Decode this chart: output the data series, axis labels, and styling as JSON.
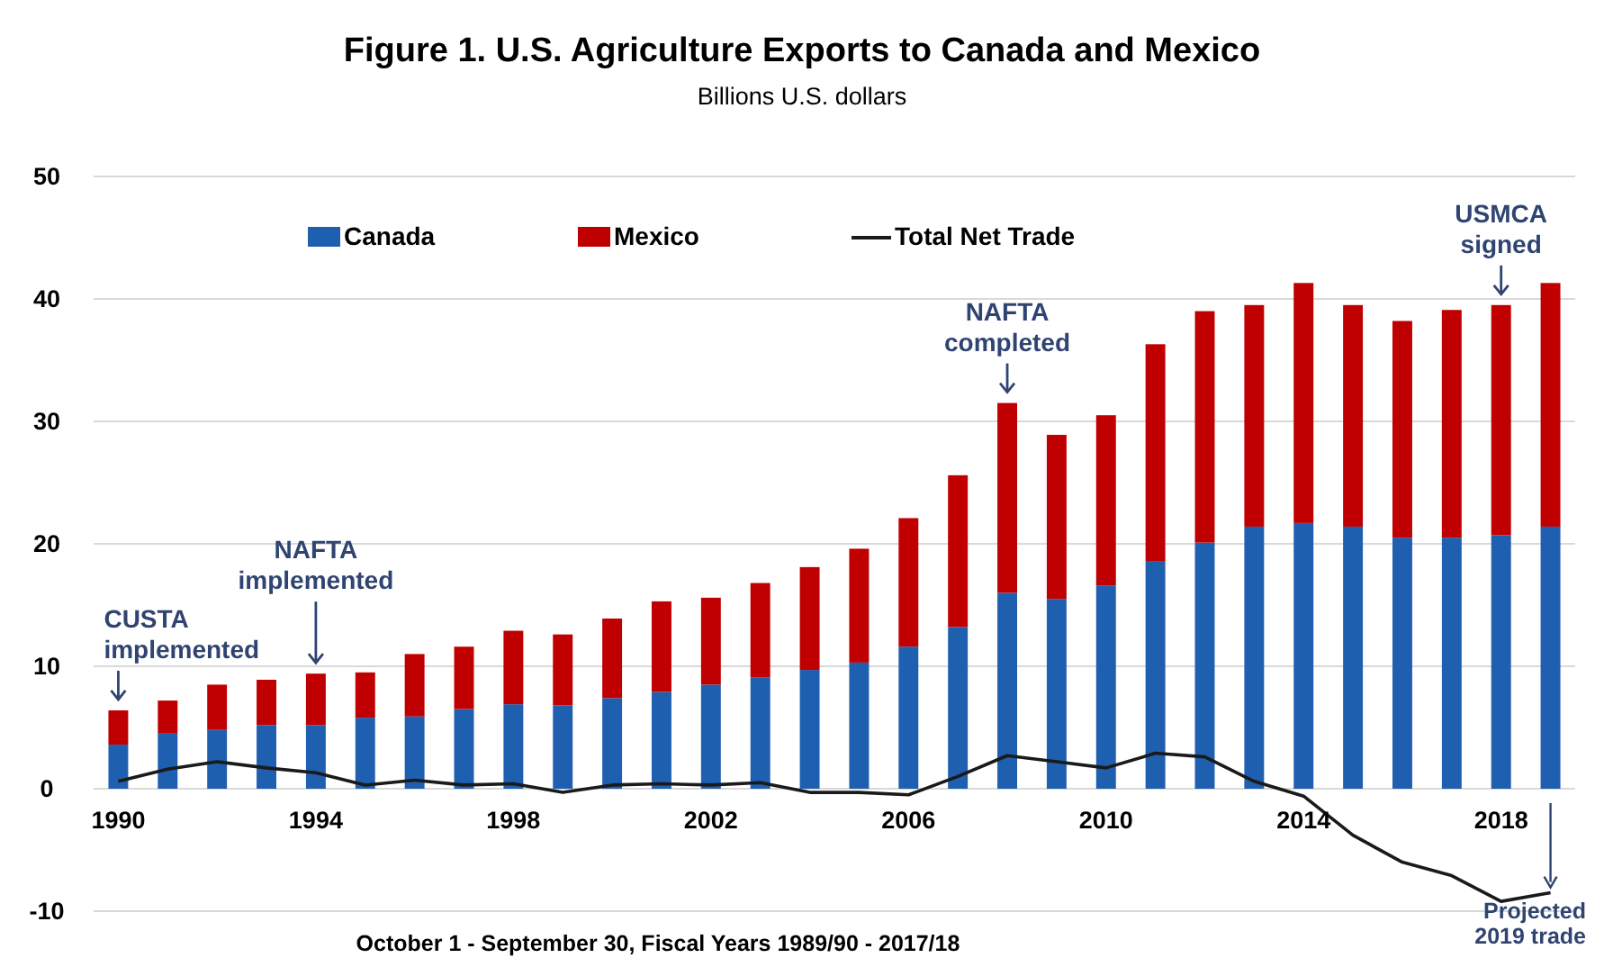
{
  "chart_data": {
    "type": "bar",
    "stacked": true,
    "title": "Figure 1. U.S. Agriculture Exports to Canada and Mexico",
    "subtitle": "Billions U.S. dollars",
    "xlabel": "October 1 - September 30, Fiscal Years 1989/90 - 2017/18",
    "x": [
      1990,
      1991,
      1992,
      1993,
      1994,
      1995,
      1996,
      1997,
      1998,
      1999,
      2000,
      2001,
      2002,
      2003,
      2004,
      2005,
      2006,
      2007,
      2008,
      2009,
      2010,
      2011,
      2012,
      2013,
      2014,
      2015,
      2016,
      2017,
      2018,
      2019
    ],
    "xlim": [
      1989.5,
      2019.5
    ],
    "xticks": [
      1990,
      1994,
      1998,
      2002,
      2006,
      2010,
      2014,
      2018
    ],
    "series": [
      {
        "name": "Canada",
        "color": "#1f5fb0",
        "values": [
          3.6,
          4.5,
          4.8,
          5.2,
          5.2,
          5.8,
          5.9,
          6.5,
          6.9,
          6.8,
          7.4,
          7.9,
          8.5,
          9.1,
          9.7,
          10.3,
          11.6,
          13.2,
          16.0,
          15.5,
          16.6,
          18.6,
          20.1,
          21.4,
          21.7,
          21.4,
          20.5,
          20.5,
          20.7,
          21.4
        ]
      },
      {
        "name": "Mexico",
        "color": "#c00000",
        "values": [
          2.8,
          2.7,
          3.7,
          3.7,
          4.2,
          3.7,
          5.1,
          5.1,
          6.0,
          5.8,
          6.5,
          7.4,
          7.1,
          7.7,
          8.4,
          9.3,
          10.5,
          12.4,
          15.5,
          13.4,
          13.9,
          17.7,
          18.9,
          18.1,
          19.6,
          18.1,
          17.7,
          18.6,
          18.8,
          19.9
        ]
      },
      {
        "name": "Total Net Trade",
        "type": "line",
        "color": "#1a1a1a",
        "values": [
          0.6,
          1.6,
          2.2,
          1.7,
          1.3,
          0.3,
          0.7,
          0.3,
          0.4,
          -0.3,
          0.3,
          0.4,
          0.3,
          0.5,
          -0.3,
          -0.3,
          -0.5,
          1.0,
          2.7,
          2.2,
          1.7,
          2.9,
          2.6,
          0.6,
          -0.6,
          -3.8,
          -6.0,
          -7.1,
          -9.2,
          -8.5
        ]
      }
    ],
    "ylim": [
      -10,
      50
    ],
    "yticks": [
      -10,
      0,
      10,
      20,
      30,
      40,
      50
    ],
    "grid": "y",
    "legend": "top",
    "marker": "none",
    "annotations": [
      {
        "text": "CUSTA implemented",
        "x": 1990,
        "y": 6.4
      },
      {
        "text": "NAFTA implemented",
        "x": 1994,
        "y": 9.4
      },
      {
        "text": "NAFTA completed",
        "x": 2008,
        "y": 31.5
      },
      {
        "text": "USMCA signed",
        "x": 2018,
        "y": 39.5
      },
      {
        "text": "Projected 2019 trade",
        "x": 2019,
        "y": -8.5
      }
    ]
  }
}
